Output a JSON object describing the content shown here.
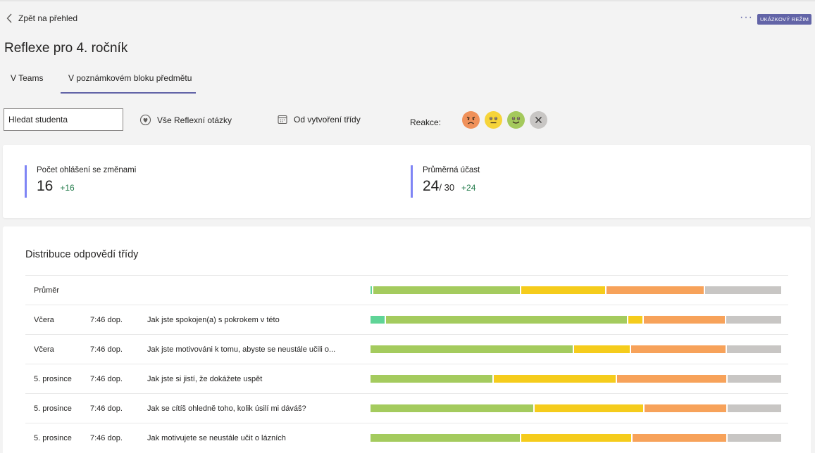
{
  "nav": {
    "back_label": "Zpět na přehled",
    "demo_badge": "UKÁZKOVÝ REŽIM"
  },
  "page": {
    "title": "Reflexe pro 4. ročník"
  },
  "tabs": [
    {
      "label": "V Teams",
      "active": false
    },
    {
      "label": "V poznámkovém bloku předmětu",
      "active": true
    }
  ],
  "filters": {
    "search_value": "Hledat studenta",
    "questions": "Vše Reflexní otázky",
    "period": "Od vytvoření třídy",
    "reactions_label": "Reakce:"
  },
  "reactions": [
    {
      "name": "sad",
      "color": "#f0915a"
    },
    {
      "name": "neutral",
      "color": "#f6d43a"
    },
    {
      "name": "happy",
      "color": "#a4c95c"
    },
    {
      "name": "clear",
      "color": "#c8c6c4"
    }
  ],
  "stats": [
    {
      "label": "Počet ohlášení se změnami",
      "value": "16",
      "total": "",
      "delta": "+16"
    },
    {
      "label": "Průměrná účast",
      "value": "24",
      "total": "/ 30",
      "delta": "+24"
    }
  ],
  "distribution": {
    "title": "Distribuce odpovědí třídy",
    "colors": {
      "teal": "#5fd497",
      "green": "#a4cb5e",
      "yellow": "#f5cc1c",
      "orange": "#f7a25a",
      "gray": "#c8c6c4"
    },
    "rows": [
      {
        "date": "Průměr",
        "time": "",
        "question": "",
        "segments": [
          0.3,
          36.2,
          20.8,
          24.0,
          18.7
        ]
      },
      {
        "date": "Včera",
        "time": "7:46 dop.",
        "question": "Jak jste spokojen(a) s pokrokem v této",
        "segments": [
          3.4,
          59.6,
          3.4,
          20.0,
          13.6
        ]
      },
      {
        "date": "Včera",
        "time": "7:46 dop.",
        "question": "Jak jste motivováni k tomu, abyste se neustále učili o...",
        "segments": [
          0,
          49.8,
          13.6,
          23.2,
          13.4
        ]
      },
      {
        "date": "5. prosince",
        "time": "7:46 dop.",
        "question": "Jak jste si jistí, že dokážete uspět",
        "segments": [
          0,
          30.0,
          30.0,
          26.8,
          13.2
        ]
      },
      {
        "date": "5. prosince",
        "time": "7:46 dop.",
        "question": "Jak se cítíš ohledně toho, kolik úsilí mi dáváš?",
        "segments": [
          0,
          40.0,
          26.8,
          20.1,
          13.1
        ]
      },
      {
        "date": "5. prosince",
        "time": "7:46 dop.",
        "question": "Jak motivujete se neustále učit o lázních",
        "segments": [
          0,
          36.8,
          26.9,
          23.2,
          13.1
        ]
      }
    ]
  }
}
